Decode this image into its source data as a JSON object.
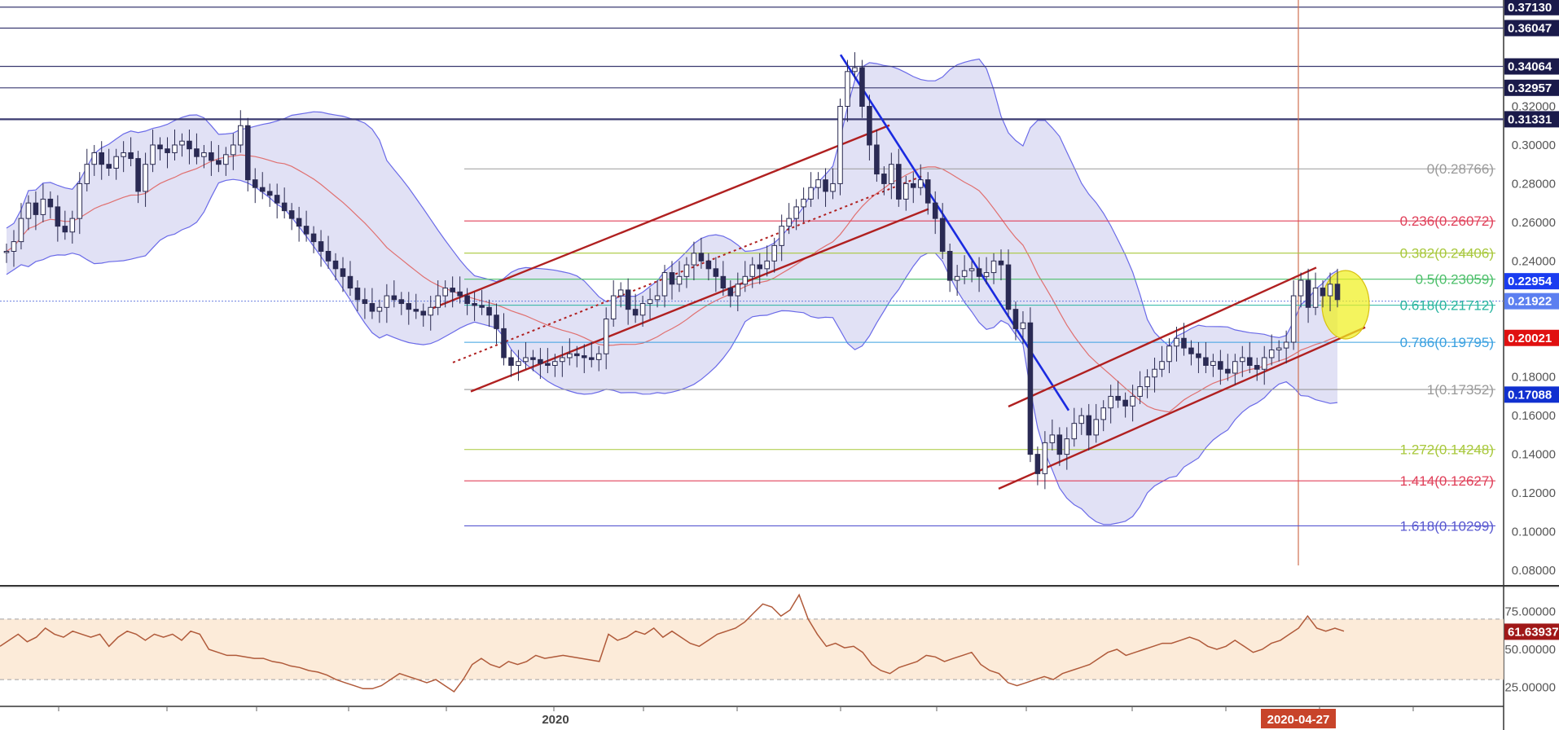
{
  "chart_data": [
    {
      "type": "candlestick",
      "panel": "price",
      "ylim": [
        0.08,
        0.375
      ],
      "y_ticks": [
        "0.10000",
        "0.12000",
        "0.14000",
        "0.16000",
        "0.18000",
        "0.20000",
        "0.22000",
        "0.24000",
        "0.26000",
        "0.28000",
        "0.30000",
        "0.32000"
      ],
      "y_tick_values": [
        0.1,
        0.12,
        0.14,
        0.16,
        0.18,
        0.2,
        0.22,
        0.24,
        0.26,
        0.28,
        0.3,
        0.32
      ],
      "x_labels": [
        "2020",
        "2020-04-27"
      ],
      "price_labels": [
        {
          "text": "0.37130",
          "value": 0.3713,
          "color": "#1a1a4a"
        },
        {
          "text": "0.36047",
          "value": 0.36047,
          "color": "#1a1a4a"
        },
        {
          "text": "0.34064",
          "value": 0.34064,
          "color": "#1a1a4a"
        },
        {
          "text": "0.32957",
          "value": 0.32957,
          "color": "#1a1a4a"
        },
        {
          "text": "0.31331",
          "value": 0.31331,
          "color": "#1a1a4a"
        },
        {
          "text": "0.22954",
          "value": 0.22954,
          "color": "#1a3cf0"
        },
        {
          "text": "0.21922",
          "value": 0.21922,
          "color": "#5c7ff0"
        },
        {
          "text": "0.20021",
          "value": 0.20021,
          "color": "#e01010"
        },
        {
          "text": "0.17088",
          "value": 0.17088,
          "color": "#1030d0"
        }
      ],
      "horizontal_lines": [
        0.3713,
        0.36047,
        0.34064,
        0.32957,
        0.31331
      ],
      "fibonacci": [
        {
          "label": "0(0.28766)",
          "value": 0.28766,
          "color": "#9a9a9a"
        },
        {
          "label": "0.236(0.26072)",
          "value": 0.26072,
          "color": "#e0405a"
        },
        {
          "label": "0.382(0.24406)",
          "value": 0.24406,
          "color": "#a8c83c"
        },
        {
          "label": "0.5(0.23059)",
          "value": 0.23059,
          "color": "#4cbf6a"
        },
        {
          "label": "0.618(0.21712)",
          "value": 0.21712,
          "color": "#2ab5a0"
        },
        {
          "label": "0.786(0.19795)",
          "value": 0.19795,
          "color": "#3aa0e0"
        },
        {
          "label": "1(0.17352)",
          "value": 0.17352,
          "color": "#9a9a9a"
        },
        {
          "label": "1.272(0.14248)",
          "value": 0.14248,
          "color": "#a8c83c"
        },
        {
          "label": "1.414(0.12627)",
          "value": 0.12627,
          "color": "#e0405a"
        },
        {
          "label": "1.618(0.10299)",
          "value": 0.10299,
          "color": "#5858d0"
        }
      ],
      "close_series": [
        0.245,
        0.25,
        0.262,
        0.27,
        0.264,
        0.272,
        0.268,
        0.258,
        0.255,
        0.262,
        0.28,
        0.29,
        0.296,
        0.29,
        0.288,
        0.294,
        0.296,
        0.293,
        0.276,
        0.29,
        0.3,
        0.298,
        0.296,
        0.3,
        0.302,
        0.298,
        0.294,
        0.296,
        0.292,
        0.29,
        0.295,
        0.3,
        0.31,
        0.282,
        0.278,
        0.276,
        0.274,
        0.27,
        0.266,
        0.262,
        0.258,
        0.254,
        0.25,
        0.245,
        0.24,
        0.236,
        0.232,
        0.226,
        0.22,
        0.218,
        0.214,
        0.216,
        0.222,
        0.22,
        0.218,
        0.215,
        0.214,
        0.212,
        0.216,
        0.222,
        0.226,
        0.224,
        0.222,
        0.218,
        0.217,
        0.216,
        0.212,
        0.205,
        0.19,
        0.186,
        0.188,
        0.19,
        0.189,
        0.187,
        0.186,
        0.188,
        0.19,
        0.192,
        0.191,
        0.19,
        0.189,
        0.192,
        0.21,
        0.222,
        0.225,
        0.215,
        0.212,
        0.218,
        0.22,
        0.222,
        0.234,
        0.228,
        0.232,
        0.238,
        0.244,
        0.24,
        0.236,
        0.232,
        0.226,
        0.222,
        0.228,
        0.232,
        0.238,
        0.236,
        0.24,
        0.248,
        0.258,
        0.262,
        0.268,
        0.272,
        0.278,
        0.282,
        0.276,
        0.28,
        0.32,
        0.338,
        0.34,
        0.32,
        0.3,
        0.285,
        0.28,
        0.29,
        0.272,
        0.28,
        0.278,
        0.282,
        0.27,
        0.262,
        0.245,
        0.23,
        0.232,
        0.235,
        0.236,
        0.232,
        0.234,
        0.24,
        0.238,
        0.215,
        0.205,
        0.208,
        0.14,
        0.13,
        0.146,
        0.15,
        0.14,
        0.148,
        0.156,
        0.16,
        0.15,
        0.158,
        0.164,
        0.17,
        0.168,
        0.165,
        0.17,
        0.175,
        0.18,
        0.184,
        0.188,
        0.196,
        0.2,
        0.195,
        0.192,
        0.19,
        0.186,
        0.188,
        0.184,
        0.182,
        0.188,
        0.19,
        0.186,
        0.184,
        0.19,
        0.194,
        0.195,
        0.198,
        0.222,
        0.23,
        0.216,
        0.226,
        0.222,
        0.228,
        0.22
      ],
      "rsi": {
        "ylim": [
          15,
          85
        ],
        "y_ticks": [
          "75.00000",
          "50.00000",
          "25.00000"
        ],
        "y_tick_values": [
          75,
          50,
          25
        ],
        "levels": [
          70,
          30
        ],
        "current_label": "61.63937",
        "values": [
          52,
          56,
          60,
          55,
          58,
          64,
          60,
          58,
          62,
          60,
          58,
          60,
          52,
          58,
          62,
          60,
          56,
          60,
          58,
          60,
          56,
          62,
          60,
          50,
          48,
          46,
          46,
          45,
          44,
          44,
          42,
          41,
          39,
          38,
          36,
          35,
          33,
          30,
          28,
          26,
          24,
          24,
          26,
          30,
          34,
          32,
          30,
          28,
          30,
          26,
          22,
          30,
          40,
          44,
          40,
          38,
          42,
          40,
          42,
          46,
          44,
          45,
          46,
          45,
          44,
          43,
          42,
          60,
          56,
          58,
          62,
          60,
          64,
          58,
          62,
          58,
          54,
          52,
          56,
          60,
          62,
          64,
          68,
          74,
          80,
          78,
          72,
          76,
          86,
          70,
          60,
          52,
          54,
          51,
          52,
          48,
          40,
          36,
          34,
          38,
          40,
          42,
          46,
          45,
          42,
          44,
          46,
          48,
          40,
          36,
          34,
          28,
          26,
          28,
          30,
          32,
          30,
          34,
          36,
          38,
          40,
          44,
          48,
          50,
          46,
          48,
          50,
          52,
          54,
          54,
          56,
          58,
          56,
          52,
          50,
          52,
          56,
          52,
          48,
          50,
          54,
          56,
          60,
          64,
          72,
          64,
          62,
          64,
          62
        ]
      }
    }
  ]
}
